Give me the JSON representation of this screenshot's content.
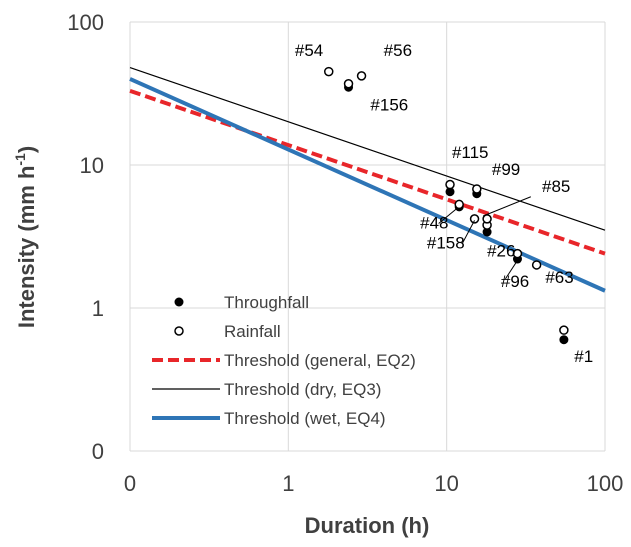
{
  "chart_data": {
    "type": "scatter",
    "x_scale": "log",
    "y_scale": "log",
    "xlabel": "Duration (h)",
    "ylabel": {
      "main": "Intensity (mm h",
      "sup": "-1",
      "close": ")"
    },
    "xlim": [
      0.1,
      100
    ],
    "ylim": [
      0.1,
      100
    ],
    "x_ticks": [
      {
        "value": 0.1,
        "label": "0"
      },
      {
        "value": 1,
        "label": "1"
      },
      {
        "value": 10,
        "label": "10"
      },
      {
        "value": 100,
        "label": "100"
      }
    ],
    "y_ticks": [
      {
        "value": 0.1,
        "label": "0"
      },
      {
        "value": 1,
        "label": "1"
      },
      {
        "value": 10,
        "label": "10"
      },
      {
        "value": 100,
        "label": "100"
      }
    ],
    "grid": true,
    "legend_position": "bottom-left",
    "legend": [
      {
        "label": "Throughfall",
        "kind": "filled"
      },
      {
        "label": "Rainfall",
        "kind": "open"
      },
      {
        "label": "Threshold (general, EQ2)",
        "kind": "line",
        "ref": "general"
      },
      {
        "label": "Threshold (dry, EQ3)",
        "kind": "line",
        "ref": "dry"
      },
      {
        "label": "Threshold (wet, EQ4)",
        "kind": "line",
        "ref": "wet"
      }
    ],
    "thresholds": [
      {
        "id": "general",
        "color": "#e8262a",
        "dash": true,
        "width": 4,
        "x": [
          0.1,
          100
        ],
        "y": [
          33,
          2.4
        ]
      },
      {
        "id": "dry",
        "color": "#000000",
        "dash": false,
        "width": 1.2,
        "x": [
          0.1,
          100
        ],
        "y": [
          48,
          3.5
        ]
      },
      {
        "id": "wet",
        "color": "#2e75b6",
        "dash": false,
        "width": 4,
        "x": [
          0.1,
          100
        ],
        "y": [
          40,
          1.32
        ]
      }
    ],
    "series": [
      {
        "name": "Throughfall",
        "kind": "filled",
        "points": [
          {
            "x": 2.4,
            "y": 35
          },
          {
            "x": 10.5,
            "y": 6.5
          },
          {
            "x": 12,
            "y": 5.1
          },
          {
            "x": 15.5,
            "y": 6.3
          },
          {
            "x": 18,
            "y": 3.4
          },
          {
            "x": 28,
            "y": 2.2
          },
          {
            "x": 55,
            "y": 0.6
          }
        ]
      },
      {
        "name": "Rainfall",
        "kind": "open",
        "points": [
          {
            "x": 1.8,
            "y": 45
          },
          {
            "x": 2.4,
            "y": 37
          },
          {
            "x": 2.9,
            "y": 42
          },
          {
            "x": 10.5,
            "y": 7.3
          },
          {
            "x": 12,
            "y": 5.3
          },
          {
            "x": 15,
            "y": 4.2
          },
          {
            "x": 15.5,
            "y": 6.8
          },
          {
            "x": 18,
            "y": 3.8
          },
          {
            "x": 18,
            "y": 4.2
          },
          {
            "x": 28,
            "y": 2.4
          },
          {
            "x": 37,
            "y": 2.0
          },
          {
            "x": 55,
            "y": 0.7
          }
        ]
      }
    ],
    "annotations": [
      {
        "text": "#54",
        "x": 1.1,
        "y": 58
      },
      {
        "text": "#56",
        "x": 4.0,
        "y": 58
      },
      {
        "text": "#156",
        "x": 3.3,
        "y": 24
      },
      {
        "text": "#115",
        "x": 10.8,
        "y": 11.2
      },
      {
        "text": "#99",
        "x": 19.3,
        "y": 8.5
      },
      {
        "text": "#85",
        "x": 40,
        "y": 6.5
      },
      {
        "text": "#48",
        "x": 6.8,
        "y": 3.6
      },
      {
        "text": "#158",
        "x": 7.5,
        "y": 2.6
      },
      {
        "text": "#26",
        "x": 18,
        "y": 2.3
      },
      {
        "text": "#96",
        "x": 22,
        "y": 1.4
      },
      {
        "text": "#63",
        "x": 42,
        "y": 1.5
      },
      {
        "text": "#1",
        "x": 64,
        "y": 0.42
      }
    ]
  }
}
